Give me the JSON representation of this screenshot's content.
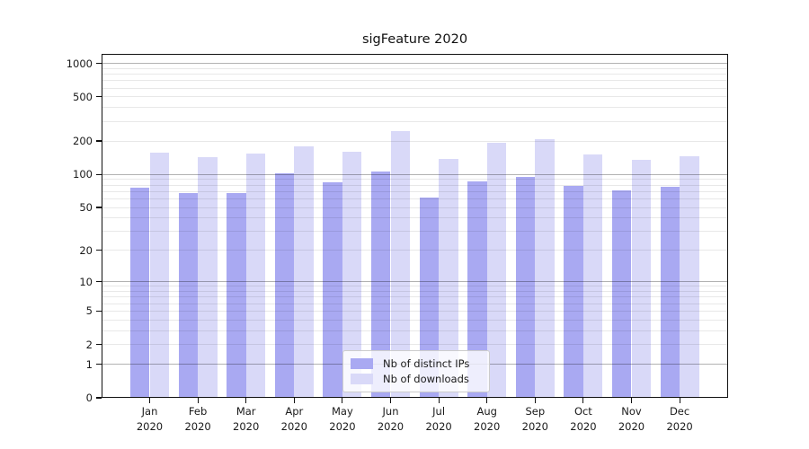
{
  "title": "sigFeature 2020",
  "chart_data": {
    "type": "bar",
    "title": "sigFeature 2020",
    "categories": [
      "Jan",
      "Feb",
      "Mar",
      "Apr",
      "May",
      "Jun",
      "Jul",
      "Aug",
      "Sep",
      "Oct",
      "Nov",
      "Dec"
    ],
    "x_tick_year": "2020",
    "series": [
      {
        "name": "Nb of distinct IPs",
        "color": "#a9a9f2",
        "values": [
          76,
          67,
          68,
          103,
          85,
          107,
          61,
          86,
          95,
          79,
          71,
          77
        ]
      },
      {
        "name": "Nb of downloads",
        "color": "#d9d9f8",
        "values": [
          158,
          143,
          155,
          179,
          160,
          246,
          138,
          193,
          206,
          150,
          135,
          146
        ]
      }
    ],
    "y_axis": {
      "scale": "log10(value+1)",
      "tick_values": [
        1000,
        500,
        200,
        100,
        50,
        20,
        10,
        5,
        2,
        1,
        0
      ],
      "major_grid_values": [
        1,
        10,
        100,
        1000
      ],
      "minor_grid_decades": [
        1,
        10,
        100
      ],
      "range_max": 1000
    },
    "legend": {
      "position": "lower center",
      "items": [
        "Nb of distinct IPs",
        "Nb of downloads"
      ]
    },
    "grid": true
  },
  "colors": {
    "bar_distinct_ips": "#a9a9f2",
    "bar_downloads": "#d9d9f8",
    "major_grid": "rgba(0,0,0,0.30)",
    "minor_grid": "rgba(0,0,0,0.09)",
    "axis": "#111111",
    "text": "#1a1a1a",
    "legend_bg": "rgba(255,255,255,0.8)",
    "legend_border": "#cccccc"
  }
}
